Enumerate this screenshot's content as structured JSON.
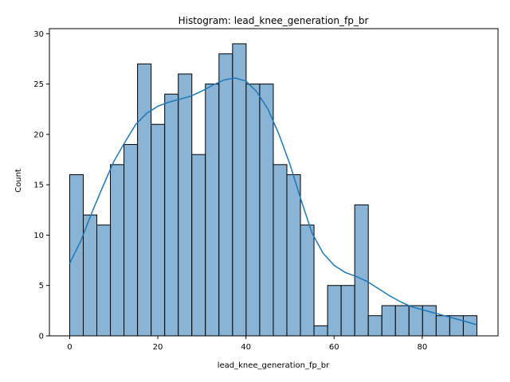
{
  "chart_data": {
    "type": "bar",
    "title": "Histogram: lead_knee_generation_fp_br",
    "xlabel": "lead_knee_generation_fp_br",
    "ylabel": "Count",
    "xlim": [
      -4.6,
      97.2
    ],
    "ylim": [
      0,
      30.5
    ],
    "x_ticks": [
      0,
      20,
      40,
      60,
      80
    ],
    "y_ticks": [
      0,
      5,
      10,
      15,
      20,
      25,
      30
    ],
    "bin_start": 0,
    "bin_width": 3.08,
    "values": [
      16,
      12,
      11,
      17,
      19,
      27,
      21,
      24,
      26,
      18,
      25,
      28,
      29,
      25,
      25,
      17,
      16,
      11,
      1,
      5,
      5,
      13,
      2,
      3,
      3,
      3,
      3,
      2,
      2,
      2
    ],
    "kde": {
      "x": [
        0,
        2.5,
        5,
        7.5,
        10,
        12.5,
        15,
        17.5,
        20,
        22.5,
        25,
        27.5,
        30,
        32.5,
        35,
        37.5,
        40,
        42.5,
        45,
        47.5,
        50,
        52.5,
        55,
        57.5,
        60,
        62.5,
        65,
        67.5,
        70,
        72.5,
        75,
        77.5,
        80,
        82.5,
        85,
        87.5,
        90,
        92.4
      ],
      "y": [
        7.2,
        9.4,
        12.2,
        14.8,
        17.3,
        19.2,
        21.0,
        22.1,
        22.8,
        23.2,
        23.5,
        23.8,
        24.3,
        24.9,
        25.4,
        25.6,
        25.3,
        24.2,
        22.5,
        20.0,
        17.0,
        13.5,
        10.2,
        8.2,
        7.0,
        6.3,
        5.9,
        5.4,
        4.7,
        4.0,
        3.4,
        2.9,
        2.6,
        2.3,
        2.0,
        1.7,
        1.4,
        1.1
      ]
    },
    "colors": {
      "bar_fill": "#89b4d6",
      "bar_edge": "#000000",
      "kde_line": "#1f77b4"
    }
  }
}
